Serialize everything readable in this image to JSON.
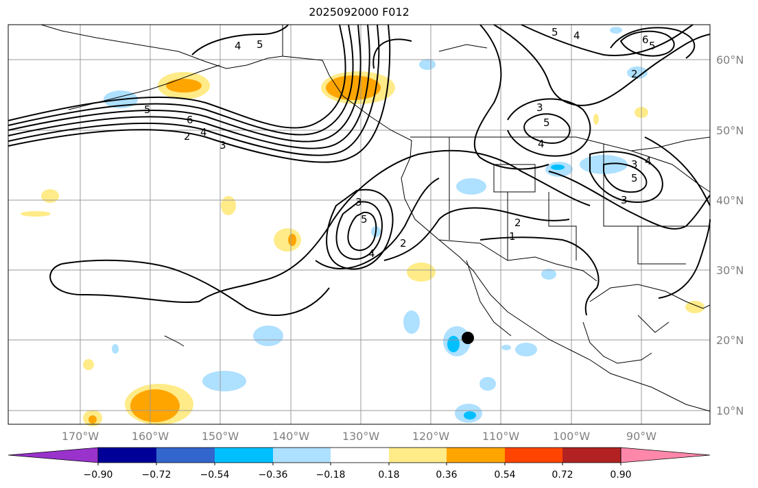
{
  "title": "2025092000 F012",
  "map": {
    "lat_labels": [
      "60°N",
      "50°N",
      "40°N",
      "30°N",
      "20°N",
      "10°N"
    ],
    "lon_labels": [
      "170°W",
      "160°W",
      "150°W",
      "140°W",
      "130°W",
      "120°W",
      "110°W",
      "100°W",
      "90°W"
    ],
    "contour_labels": [
      "5",
      "4",
      "5",
      "4",
      "6",
      "5",
      "2",
      "5",
      "6",
      "4",
      "2",
      "3",
      "3",
      "5",
      "4",
      "2",
      "1",
      "2",
      "3",
      "5",
      "4",
      "3",
      "5",
      "3",
      "4"
    ],
    "marker": {
      "lat": 20.1,
      "lon": -114.6,
      "color": "#000000"
    }
  },
  "colorbar": {
    "ticks": [
      "−0.90",
      "−0.72",
      "−0.54",
      "−0.36",
      "−0.18",
      "0.18",
      "0.36",
      "0.54",
      "0.72",
      "0.90"
    ],
    "colors": [
      "#9933cc",
      "#000099",
      "#3366cc",
      "#00bfff",
      "#aee0ff",
      "#ffffff",
      "#ffeb88",
      "#ffa500",
      "#ff4500",
      "#b22222",
      "#ff88aa"
    ]
  }
}
